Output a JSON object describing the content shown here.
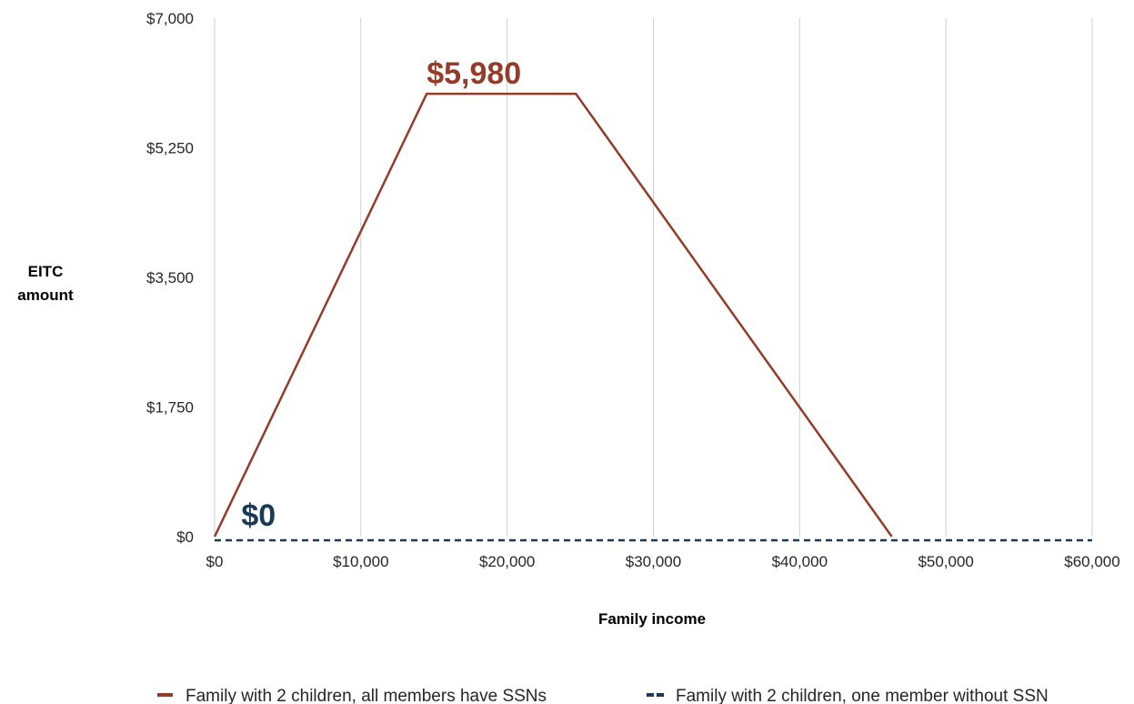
{
  "chart_data": {
    "type": "line",
    "title": "",
    "xlabel": "Family income",
    "ylabel": [
      "EITC",
      "amount"
    ],
    "xlim": [
      0,
      60000
    ],
    "ylim": [
      0,
      7000
    ],
    "x_ticks": [
      0,
      10000,
      20000,
      30000,
      40000,
      50000,
      60000
    ],
    "x_tick_labels": [
      "$0",
      "$10,000",
      "$20,000",
      "$30,000",
      "$40,000",
      "$50,000",
      "$60,000"
    ],
    "y_ticks": [
      0,
      1750,
      3500,
      5250,
      7000
    ],
    "y_tick_labels": [
      "$0",
      "$1,750",
      "$3,500",
      "$5,250",
      "$7,000"
    ],
    "grid": "vertical",
    "legend_position": "bottom",
    "series": [
      {
        "name": "Family with 2 children, all members have SSNs",
        "color": "#943b2a",
        "style": "solid",
        "points": [
          [
            0,
            0
          ],
          [
            14500,
            5980
          ],
          [
            24700,
            5980
          ],
          [
            46300,
            0
          ]
        ]
      },
      {
        "name": "Family with 2 children, one member without SSN",
        "color": "#1b3a55",
        "style": "dashed",
        "points": [
          [
            0,
            0
          ],
          [
            60000,
            0
          ]
        ]
      }
    ],
    "annotations": [
      {
        "text": "$5,980",
        "x": 14500,
        "y": 5980,
        "color": "#943b2a"
      },
      {
        "text": "$0",
        "x": 3000,
        "y": 0,
        "color": "#1b3a55"
      }
    ]
  }
}
